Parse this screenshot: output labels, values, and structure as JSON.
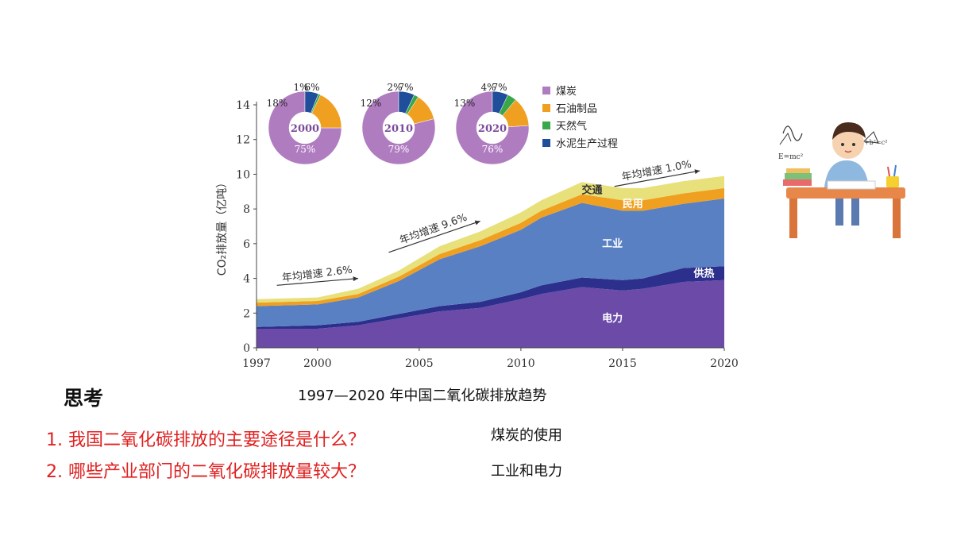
{
  "caption": "1997—2020 年中国二氧化碳排放趋势",
  "think_title": "思考",
  "questions": [
    {
      "text": "1.  我国二氧化碳排放的主要途径是什么？",
      "answer": "煤炭的使用"
    },
    {
      "text": "2.  哪些产业部门的二氧化碳排放量较大？",
      "answer": "工业和电力"
    }
  ],
  "chart_data": [
    {
      "type": "area",
      "stacked": true,
      "ylabel": "CO₂排放量（亿吨）",
      "xlim": [
        1997,
        2020
      ],
      "ylim": [
        0,
        14
      ],
      "x_ticks": [
        1997,
        2000,
        2005,
        2010,
        2015,
        2020
      ],
      "y_ticks": [
        0,
        2,
        4,
        6,
        8,
        10,
        12,
        14
      ],
      "x": [
        1997,
        2000,
        2002,
        2004,
        2006,
        2008,
        2010,
        2011,
        2013,
        2015,
        2016,
        2018,
        2020
      ],
      "series": [
        {
          "name": "电力",
          "color": "#6b4aa8",
          "values": [
            1.1,
            1.1,
            1.3,
            1.7,
            2.1,
            2.3,
            2.8,
            3.1,
            3.5,
            3.3,
            3.4,
            3.8,
            3.9
          ]
        },
        {
          "name": "供热",
          "color": "#2c2f8c",
          "values": [
            0.1,
            0.2,
            0.2,
            0.25,
            0.3,
            0.35,
            0.4,
            0.5,
            0.55,
            0.6,
            0.6,
            0.8,
            0.8
          ]
        },
        {
          "name": "工业",
          "color": "#5a80c4",
          "values": [
            1.2,
            1.2,
            1.4,
            1.9,
            2.7,
            3.2,
            3.6,
            3.9,
            4.3,
            4.0,
            3.9,
            3.7,
            3.9
          ]
        },
        {
          "name": "民用",
          "color": "#f0a020",
          "values": [
            0.2,
            0.2,
            0.2,
            0.25,
            0.3,
            0.35,
            0.4,
            0.4,
            0.5,
            0.6,
            0.6,
            0.6,
            0.6
          ]
        },
        {
          "name": "交通",
          "color": "#e8e07a",
          "values": [
            0.2,
            0.2,
            0.3,
            0.35,
            0.45,
            0.5,
            0.6,
            0.6,
            0.7,
            0.7,
            0.7,
            0.7,
            0.7
          ]
        }
      ],
      "annotations": [
        {
          "text": "年均增速 2.6%",
          "x": 2000,
          "y": 3.6
        },
        {
          "text": "年均增速 9.6%",
          "x": 2005.5,
          "y": 6.8
        },
        {
          "text": "年均增速 1.0%",
          "x": 2016.5,
          "y": 10.2
        }
      ]
    },
    {
      "type": "pie",
      "donut": true,
      "legend": [
        "煤炭",
        "石油制品",
        "天然气",
        "水泥生产过程"
      ],
      "legend_colors": [
        "#b07cc0",
        "#f0a020",
        "#3aa84a",
        "#1f4f9a"
      ],
      "charts": [
        {
          "label": "2000",
          "values": [
            75,
            18,
            1,
            6
          ],
          "labels": [
            "75%",
            "18%",
            "1%",
            "6%"
          ]
        },
        {
          "label": "2010",
          "values": [
            79,
            12,
            2,
            7
          ],
          "labels": [
            "79%",
            "12%",
            "2%",
            "7%"
          ]
        },
        {
          "label": "2020",
          "values": [
            76,
            13,
            4,
            7
          ],
          "labels": [
            "76%",
            "13%",
            "4%",
            "7%"
          ]
        }
      ]
    }
  ],
  "illustration": {
    "icon": "boy-studying-icon",
    "formulas": [
      "E=mc²",
      "a²+b²=c²"
    ]
  }
}
